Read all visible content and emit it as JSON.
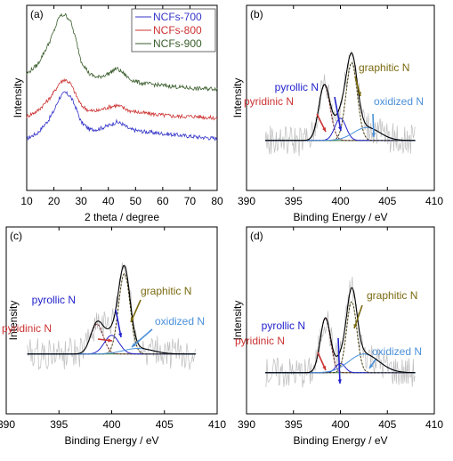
{
  "chart_data": [
    {
      "type": "line",
      "panel_label": "(a)",
      "xlabel": "2 theta / degree",
      "ylabel": "Intensity",
      "xlim": [
        10,
        80
      ],
      "xticks": [
        10,
        20,
        30,
        40,
        50,
        60,
        70,
        80
      ],
      "legend": "top-right",
      "series": [
        {
          "name": "NCFs-700",
          "color": "#3535c8",
          "x": [
            10,
            14,
            18,
            20,
            22,
            24,
            26,
            28,
            30,
            33,
            36,
            40,
            43,
            45,
            48,
            52,
            58,
            65,
            72,
            80
          ],
          "y": [
            0.28,
            0.31,
            0.38,
            0.43,
            0.5,
            0.53,
            0.51,
            0.45,
            0.37,
            0.33,
            0.33,
            0.35,
            0.37,
            0.36,
            0.33,
            0.32,
            0.31,
            0.3,
            0.29,
            0.28
          ]
        },
        {
          "name": "NCFs-800",
          "color": "#cc3333",
          "x": [
            10,
            14,
            18,
            20,
            22,
            24,
            26,
            28,
            30,
            33,
            36,
            40,
            43,
            45,
            48,
            52,
            58,
            65,
            72,
            80
          ],
          "y": [
            0.4,
            0.43,
            0.49,
            0.53,
            0.58,
            0.6,
            0.58,
            0.52,
            0.46,
            0.43,
            0.43,
            0.45,
            0.46,
            0.45,
            0.43,
            0.42,
            0.41,
            0.4,
            0.4,
            0.39
          ]
        },
        {
          "name": "NCFs-900",
          "color": "#3a5e2c",
          "x": [
            10,
            14,
            18,
            20,
            22,
            24,
            26,
            28,
            30,
            33,
            36,
            40,
            43,
            45,
            48,
            52,
            58,
            65,
            72,
            80
          ],
          "y": [
            0.63,
            0.68,
            0.79,
            0.86,
            0.94,
            0.95,
            0.92,
            0.82,
            0.7,
            0.63,
            0.61,
            0.63,
            0.66,
            0.64,
            0.6,
            0.58,
            0.57,
            0.56,
            0.55,
            0.55
          ]
        }
      ]
    },
    {
      "type": "line",
      "panel_label": "(b)",
      "xlabel": "Binding Energy / eV",
      "ylabel": "Intensity",
      "xlim": [
        390,
        410
      ],
      "xticks": [
        390,
        395,
        400,
        405,
        410
      ],
      "peaks": [
        {
          "label": "pyridinic N",
          "center": 398.3,
          "height": 0.3,
          "width": 0.6,
          "color": "#cc3333"
        },
        {
          "label": "pyrollic N",
          "center": 400.0,
          "height": 0.12,
          "width": 0.6,
          "color": "#2222cc"
        },
        {
          "label": "graphitic N",
          "center": 401.2,
          "height": 0.42,
          "width": 0.6,
          "color": "#7a6a10"
        },
        {
          "label": "oxidized N",
          "center": 402.8,
          "height": 0.07,
          "width": 1.4,
          "color": "#4a90d9"
        }
      ]
    },
    {
      "type": "line",
      "panel_label": "(c)",
      "xlabel": "Binding Energy / eV",
      "ylabel": "Intensity",
      "xlim": [
        390,
        410
      ],
      "xticks": [
        390,
        395,
        400,
        405,
        410
      ],
      "peaks": [
        {
          "label": "pyridinic N",
          "center": 398.6,
          "height": 0.16,
          "width": 0.6,
          "color": "#cc3333"
        },
        {
          "label": "pyrollic N",
          "center": 400.0,
          "height": 0.1,
          "width": 0.7,
          "color": "#2222cc"
        },
        {
          "label": "graphitic N",
          "center": 401.2,
          "height": 0.43,
          "width": 0.55,
          "color": "#7a6a10"
        },
        {
          "label": "oxidized N",
          "center": 402.5,
          "height": 0.03,
          "width": 1.4,
          "color": "#4a90d9"
        }
      ]
    },
    {
      "type": "line",
      "panel_label": "(d)",
      "xlabel": "Binding Energy / eV",
      "ylabel": "Intensity",
      "xlim": [
        390,
        410
      ],
      "xticks": [
        390,
        395,
        400,
        405,
        410
      ],
      "peaks": [
        {
          "label": "pyridinic N",
          "center": 398.4,
          "height": 0.29,
          "width": 0.55,
          "color": "#cc3333"
        },
        {
          "label": "pyrollic N",
          "center": 400.0,
          "height": 0.05,
          "width": 0.5,
          "color": "#2222cc"
        },
        {
          "label": "graphitic N",
          "center": 401.2,
          "height": 0.38,
          "width": 0.55,
          "color": "#7a6a10"
        },
        {
          "label": "oxidized N",
          "center": 402.5,
          "height": 0.1,
          "width": 1.6,
          "color": "#4a90d9"
        }
      ]
    }
  ]
}
